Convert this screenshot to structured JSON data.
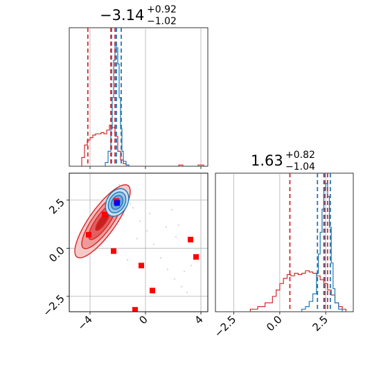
{
  "chart_data": {
    "type": "scatter",
    "subtype": "corner-plot",
    "colors": {
      "series_a": "#d62728",
      "series_b": "#1f77b4",
      "marker_blue": "#0000ff",
      "grid": "#b0b0b0"
    },
    "grid": true,
    "panels": [
      {
        "id": "hist-param-1",
        "type": "histogram",
        "title": {
          "main": "−3.14",
          "sup": "+0.92",
          "sub": "−1.02"
        },
        "xlim": [
          -5.5,
          4.5
        ],
        "x_ticks": [
          -4,
          0,
          4
        ],
        "tick_labels_shown": false,
        "quantile_lines": {
          "red": [
            -4.16,
            -2.5,
            -2.2
          ],
          "blue": [
            -2.45,
            -2.1,
            -1.75
          ]
        },
        "series": [
          {
            "name": "",
            "color": "#d62728",
            "bin_edges": [
              -4.6,
              -4.4,
              -4.2,
              -4.0,
              -3.8,
              -3.6,
              -3.4,
              -3.2,
              -3.0,
              -2.8,
              -2.6,
              -2.4,
              -2.2,
              -2.0,
              -1.8,
              -1.6,
              -1.4,
              -1.2
            ],
            "counts": [
              0.07,
              0.17,
              0.21,
              0.23,
              0.25,
              0.26,
              0.26,
              0.27,
              0.26,
              0.29,
              0.33,
              0.31,
              0.24,
              0.12,
              0.05,
              0.02,
              0.01
            ],
            "tail": [
              [
                2.4,
                2.7,
                0.01
              ],
              [
                3.8,
                4.2,
                0.01
              ]
            ]
          },
          {
            "name": "",
            "color": "#1f77b4",
            "bin_edges": [
              -2.9,
              -2.7,
              -2.5,
              -2.4,
              -2.3,
              -2.2,
              -2.1,
              -2.0,
              -1.9,
              -1.8,
              -1.7,
              -1.6,
              -1.4,
              -1.2
            ],
            "counts": [
              0.03,
              0.12,
              0.3,
              0.55,
              0.85,
              0.98,
              0.95,
              0.82,
              0.55,
              0.3,
              0.12,
              0.04,
              0.01
            ]
          }
        ]
      },
      {
        "id": "hist-param-2",
        "type": "histogram",
        "title": {
          "main": "1.63",
          "sup": "+0.82",
          "sub": "−1.04"
        },
        "xlim": [
          -3.5,
          4.0
        ],
        "x_ticks": [
          -2.5,
          0.0,
          2.5
        ],
        "x_tick_labels": [
          "−2.5",
          "0.0",
          "2.5"
        ],
        "quantile_lines": {
          "red": [
            0.55,
            2.45,
            2.6
          ],
          "blue": [
            2.05,
            2.4,
            2.75
          ]
        },
        "series": [
          {
            "name": "",
            "color": "#d62728",
            "bin_edges": [
              -1.6,
              -1.2,
              -0.8,
              -0.4,
              -0.2,
              0.0,
              0.2,
              0.4,
              0.6,
              0.8,
              1.0,
              1.2,
              1.4,
              1.6,
              1.8,
              2.0,
              2.2,
              2.4,
              2.6,
              2.8,
              3.0,
              3.2,
              3.4,
              3.6
            ],
            "counts": [
              0.02,
              0.04,
              0.07,
              0.12,
              0.17,
              0.22,
              0.26,
              0.29,
              0.28,
              0.3,
              0.29,
              0.3,
              0.32,
              0.31,
              0.3,
              0.28,
              0.25,
              0.22,
              0.17,
              0.13,
              0.07,
              0.04,
              0.02
            ]
          },
          {
            "name": "",
            "color": "#1f77b4",
            "bin_edges": [
              1.2,
              1.4,
              1.6,
              1.8,
              2.0,
              2.1,
              2.2,
              2.3,
              2.4,
              2.5,
              2.6,
              2.7,
              2.8,
              2.9,
              3.0,
              3.2,
              3.4
            ],
            "counts": [
              0.02,
              0.04,
              0.08,
              0.14,
              0.3,
              0.45,
              0.62,
              0.8,
              0.95,
              1.0,
              0.9,
              0.66,
              0.38,
              0.18,
              0.07,
              0.02
            ]
          }
        ]
      },
      {
        "id": "scatter-2d",
        "type": "contour-scatter",
        "xlim": [
          -5.5,
          4.5
        ],
        "ylim": [
          -3.3,
          3.9
        ],
        "x_ticks": [
          -4,
          0,
          4
        ],
        "x_tick_labels": [
          "−4",
          "0",
          "4"
        ],
        "y_ticks": [
          -2.5,
          0.0,
          2.5
        ],
        "y_tick_labels": [
          "−2.5",
          "0.0",
          "2.5"
        ],
        "contours": {
          "red": {
            "center": [
              -3.1,
              1.4
            ],
            "sigma": [
              1.0,
              0.95
            ],
            "rho": 0.82,
            "levels": [
              0.5,
              1.0,
              1.5,
              2.0
            ]
          },
          "blue": {
            "center": [
              -2.05,
              2.38
            ],
            "sigma": [
              0.42,
              0.36
            ],
            "rho": 0.3,
            "levels": [
              0.5,
              1.0,
              1.5,
              2.0
            ]
          }
        },
        "red_markers": [
          [
            -2.95,
            1.75
          ],
          [
            -4.1,
            0.7
          ],
          [
            -2.3,
            -0.15
          ],
          [
            -0.3,
            -0.9
          ],
          [
            0.5,
            -2.2
          ],
          [
            -0.75,
            -3.2
          ],
          [
            3.25,
            0.45
          ],
          [
            3.65,
            -0.45
          ],
          [
            -2.1,
            2.45
          ]
        ],
        "blue_marker": [
          -2.05,
          2.35
        ],
        "faint_points": [
          [
            -1.7,
            2.9
          ],
          [
            -1.4,
            2.6
          ],
          [
            -1.1,
            2.3
          ],
          [
            -0.9,
            2.1
          ],
          [
            -0.4,
            1.4
          ],
          [
            0.1,
            0.9
          ],
          [
            0.6,
            0.2
          ],
          [
            1.1,
            -0.5
          ],
          [
            1.6,
            -1.1
          ],
          [
            2.1,
            -1.6
          ],
          [
            2.6,
            -2.0
          ],
          [
            3.0,
            -2.3
          ],
          [
            2.8,
            -1.2
          ],
          [
            3.3,
            -0.9
          ],
          [
            2.2,
            0.6
          ],
          [
            1.5,
            1.1
          ],
          [
            -0.6,
            0.5
          ],
          [
            -1.3,
            -0.6
          ],
          [
            0.3,
            1.8
          ],
          [
            -1.9,
            3.3
          ],
          [
            1.9,
            2.0
          ],
          [
            2.4,
            1.2
          ]
        ]
      }
    ]
  }
}
